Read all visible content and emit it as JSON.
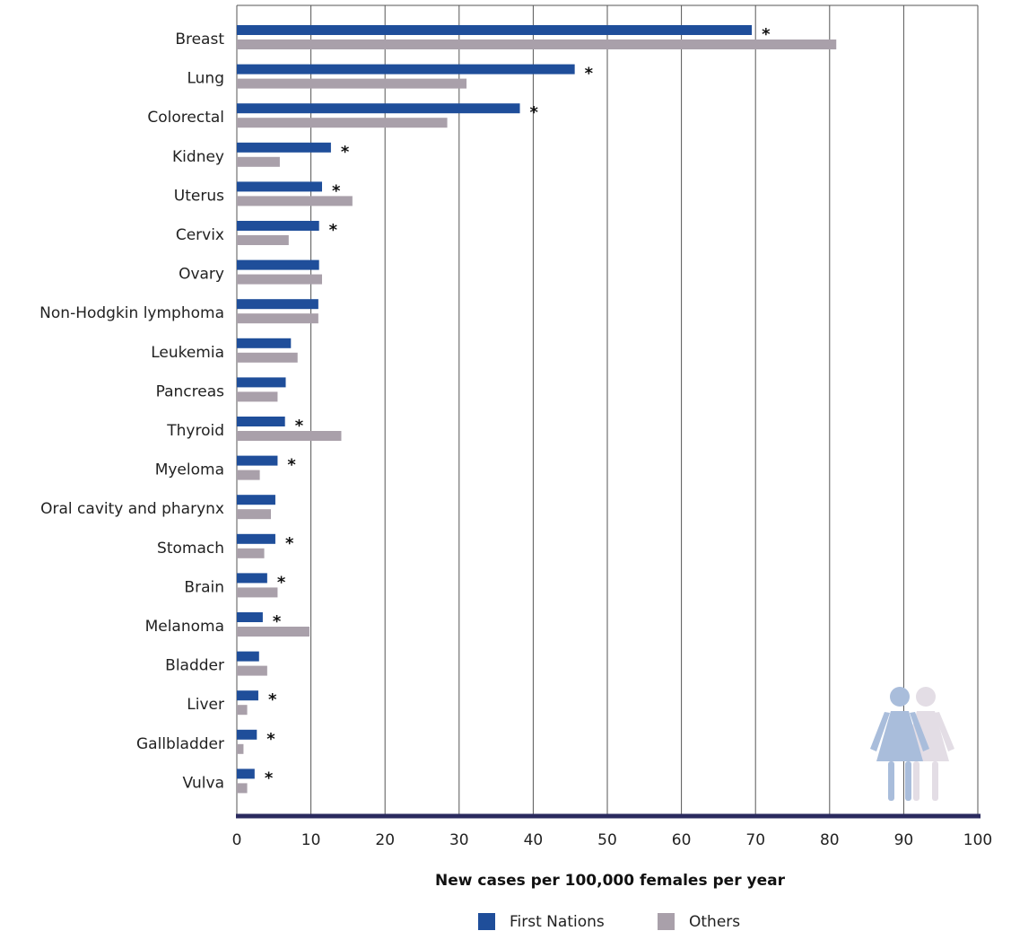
{
  "chart_data": {
    "type": "bar",
    "orientation": "horizontal",
    "categories": [
      "Breast",
      "Lung",
      "Colorectal",
      "Kidney",
      "Uterus",
      "Cervix",
      "Ovary",
      "Non-Hodgkin lymphoma",
      "Leukemia",
      "Pancreas",
      "Thyroid",
      "Myeloma",
      "Oral cavity and pharynx",
      "Stomach",
      "Brain",
      "Melanoma",
      "Bladder",
      "Liver",
      "Gallbladder",
      "Vulva"
    ],
    "series": [
      {
        "name": "First Nations",
        "color": "#1f4e9a",
        "values": [
          69.5,
          45.6,
          38.2,
          12.7,
          11.5,
          11.1,
          11.1,
          11.0,
          7.3,
          6.6,
          6.5,
          5.5,
          5.2,
          5.2,
          4.1,
          3.5,
          3.0,
          2.9,
          2.7,
          2.4
        ]
      },
      {
        "name": "Others",
        "color": "#a9a0aa",
        "values": [
          80.9,
          31.0,
          28.4,
          5.8,
          15.6,
          7.0,
          11.5,
          11.0,
          8.2,
          5.5,
          14.1,
          3.1,
          4.6,
          3.7,
          5.5,
          9.8,
          4.1,
          1.4,
          0.9,
          1.4
        ]
      }
    ],
    "significant": [
      true,
      true,
      true,
      true,
      true,
      true,
      false,
      false,
      false,
      false,
      true,
      true,
      false,
      true,
      true,
      true,
      false,
      true,
      true,
      true
    ],
    "marker": "*",
    "xlabel": "New cases per 100,000 females per year",
    "xlim": [
      0,
      100
    ],
    "xticks": [
      "0",
      "10",
      "20",
      "30",
      "40",
      "50",
      "60",
      "70",
      "80",
      "90",
      "100"
    ],
    "grid": true,
    "legend_placement": "bottom-center",
    "decoration_icon": "two-women-figures-icon"
  }
}
